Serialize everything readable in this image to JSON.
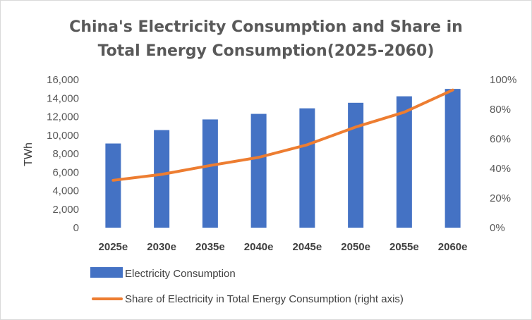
{
  "chart_data": {
    "type": "bar",
    "title_lines": [
      "China's Electricity Consumption and Share in",
      "Total Energy Consumption(2025-2060)"
    ],
    "categories": [
      "2025e",
      "2030e",
      "2035e",
      "2040e",
      "2045e",
      "2050e",
      "2055e",
      "2060e"
    ],
    "ylabel": "TWh",
    "ylim": [
      0,
      16000
    ],
    "yticks": [
      "0",
      "2,000",
      "4,000",
      "6,000",
      "8,000",
      "10,000",
      "12,000",
      "14,000",
      "16,000"
    ],
    "y2lim": [
      0,
      100
    ],
    "y2ticks": [
      "0%",
      "20%",
      "40%",
      "60%",
      "80%",
      "100%"
    ],
    "grid": false,
    "legend_position": "bottom",
    "series": [
      {
        "name": "Electricity Consumption",
        "type": "bar",
        "axis": "left",
        "color": "#4472C4",
        "values": [
          9100,
          10550,
          11700,
          12300,
          12900,
          13500,
          14200,
          15000
        ]
      },
      {
        "name": "Share of Electricity in Total Energy Consumption (right axis)",
        "type": "line",
        "axis": "right",
        "color": "#ED7D31",
        "values": [
          32,
          36,
          42,
          47.5,
          56,
          68,
          78,
          93
        ]
      }
    ]
  }
}
